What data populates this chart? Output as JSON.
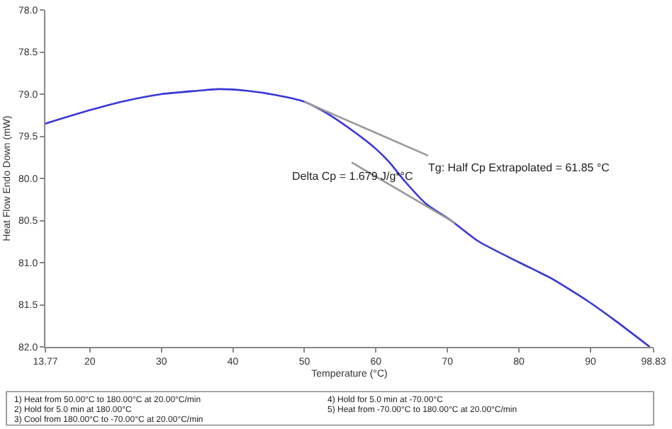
{
  "chart_data": {
    "type": "line",
    "xlabel": "Temperature (°C)",
    "ylabel": "Heat Flow Endo Down (mW)",
    "xlim": [
      13.77,
      98.83
    ],
    "xticks": [
      13.77,
      20,
      30,
      40,
      50,
      60,
      70,
      80,
      90,
      98.83
    ],
    "ylim": [
      82.0,
      78.0
    ],
    "yticks": [
      {
        "value": 78.0,
        "label": "78.0"
      },
      78.5,
      {
        "value": 79.0,
        "label": "79.0"
      },
      79.5,
      {
        "value": 80.0,
        "label": "80.0"
      },
      80.5,
      {
        "value": 81.0,
        "label": "81.0"
      },
      81.5,
      {
        "value": 82.0,
        "label": "82.0"
      }
    ],
    "marker": "none",
    "line_style": "solid",
    "series": [
      {
        "color": "#3a36d6",
        "x": [
          13.77,
          20,
          25,
          30,
          35,
          38,
          42,
          46,
          50,
          53.2,
          57,
          60,
          61.9,
          64.1,
          67,
          70.5,
          74.4,
          80.1,
          84.6,
          89.7,
          93.5,
          98.3
        ],
        "values": [
          79.35,
          79.19,
          79.08,
          79.0,
          78.96,
          78.94,
          78.96,
          79.01,
          79.09,
          79.23,
          79.45,
          79.65,
          79.81,
          80.04,
          80.3,
          80.5,
          80.75,
          81.0,
          81.19,
          81.46,
          81.69,
          82.0
        ]
      },
      {
        "color": "#999999",
        "x": [
          50,
          67.3
        ],
        "values": [
          79.09,
          79.73
        ]
      },
      {
        "color": "#999999",
        "x": [
          56.6,
          71.1
        ],
        "values": [
          79.81,
          80.53
        ]
      }
    ],
    "annotations": [
      "Tg: Half Cp Extrapolated = 61.85 °C",
      "Delta Cp = 1.679 J/g*°C",
      "1) Heat from 50.00°C to 180.00°C at 20.00°C/min",
      "2) Hold for 5.0 min at 180.00°C",
      "3) Cool from 180.00°C to -70.00°C at 20.00°C/min",
      "4) Hold for 5.0 min at -70.00°C",
      "5) Heat from -70.00°C to 180.00°C at 20.00°C/min"
    ]
  }
}
